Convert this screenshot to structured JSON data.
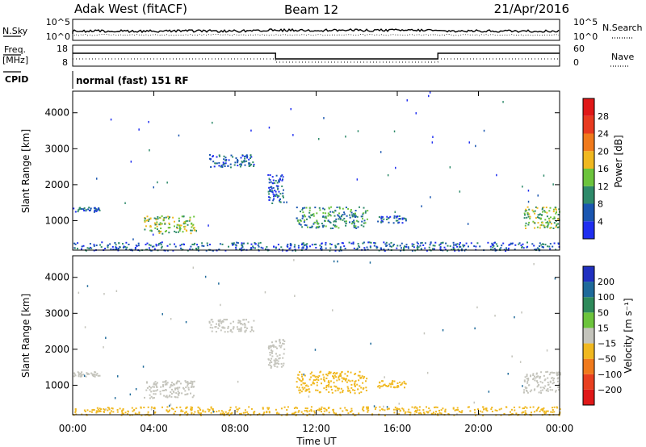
{
  "header": {
    "radar": "Adak West (fitACF)",
    "beam": "Beam 12",
    "date": "21/Apr/2016"
  },
  "status": {
    "nsky_label": "N.Sky",
    "nsearch_label": "N.Search",
    "freq_label_top": "Freq.",
    "freq_label_bottom": "[MHz]",
    "nave_label": "Nave",
    "cpid_label": "CPID",
    "cpid_text": "normal (fast) 151 RF",
    "noise_ticks": [
      "10^5",
      "10^0"
    ],
    "noise_ticks_right": [
      "10^5",
      "10^0"
    ],
    "freq_ticks": [
      "18",
      "8"
    ],
    "nave_ticks": [
      "60",
      "0"
    ]
  },
  "chart_data": [
    {
      "type": "heatmap",
      "name": "power",
      "ylabel": "Slant Range [km]",
      "xlabel": "",
      "ylim": [
        180,
        4600
      ],
      "xlim": [
        0,
        24
      ],
      "yticks": [
        1000,
        2000,
        3000,
        4000
      ],
      "colorbar": {
        "label": "Power [dB]",
        "ticks": [
          "4",
          "8",
          "12",
          "16",
          "20",
          "24",
          "28"
        ],
        "colors": [
          "#1f2ef0",
          "#1a56b0",
          "#2e8a6a",
          "#6cc43c",
          "#f0b820",
          "#f07a1c",
          "#e83a20",
          "#e01818"
        ]
      },
      "blobs": [
        {
          "t0": 0.0,
          "t1": 1.3,
          "r0": 1260,
          "r1": 1400,
          "level": 1
        },
        {
          "t0": 3.5,
          "t1": 6.0,
          "r0": 650,
          "r1": 1150,
          "level": 3
        },
        {
          "t0": 6.7,
          "t1": 8.9,
          "r0": 2500,
          "r1": 2850,
          "level": 1
        },
        {
          "t0": 9.6,
          "t1": 10.4,
          "r0": 1500,
          "r1": 2300,
          "level": 1
        },
        {
          "t0": 11.0,
          "t1": 14.5,
          "r0": 800,
          "r1": 1400,
          "level": 2
        },
        {
          "t0": 15.0,
          "t1": 16.4,
          "r0": 950,
          "r1": 1150,
          "level": 1
        },
        {
          "t0": 22.2,
          "t1": 24.0,
          "r0": 800,
          "r1": 1400,
          "level": 3
        },
        {
          "t0": 0.0,
          "t1": 24.0,
          "r0": 180,
          "r1": 420,
          "level": 1
        }
      ]
    },
    {
      "type": "heatmap",
      "name": "velocity",
      "ylabel": "Slant Range [km]",
      "xlabel": "Time UT",
      "ylim": [
        180,
        4600
      ],
      "xlim": [
        0,
        24
      ],
      "xticks": [
        "00:00",
        "04:00",
        "08:00",
        "12:00",
        "16:00",
        "20:00",
        "00:00"
      ],
      "yticks": [
        1000,
        2000,
        3000,
        4000
      ],
      "colorbar": {
        "label": "Velocity [m s⁻¹]",
        "ticks": [
          "200",
          "100",
          "50",
          "15",
          "−15",
          "−50",
          "−100",
          "−200"
        ],
        "colors": [
          "#2030c0",
          "#1f6a9a",
          "#2e8a5a",
          "#6cc43c",
          "#c4c4bc",
          "#f0b820",
          "#f07a1c",
          "#e84020",
          "#e01818"
        ]
      },
      "blobs": [
        {
          "t0": 0.0,
          "t1": 1.3,
          "r0": 1260,
          "r1": 1400,
          "color": "#c4c4bc"
        },
        {
          "t0": 3.5,
          "t1": 6.0,
          "r0": 650,
          "r1": 1150,
          "color": "#c4c4bc"
        },
        {
          "t0": 6.7,
          "t1": 8.9,
          "r0": 2500,
          "r1": 2850,
          "color": "#c4c4bc"
        },
        {
          "t0": 9.6,
          "t1": 10.4,
          "r0": 1500,
          "r1": 2300,
          "color": "#c4c4bc"
        },
        {
          "t0": 11.0,
          "t1": 14.5,
          "r0": 800,
          "r1": 1400,
          "color": "#f0b820"
        },
        {
          "t0": 15.0,
          "t1": 16.4,
          "r0": 950,
          "r1": 1150,
          "color": "#f0b820"
        },
        {
          "t0": 22.2,
          "t1": 24.0,
          "r0": 800,
          "r1": 1400,
          "color": "#c4c4bc"
        },
        {
          "t0": 0.0,
          "t1": 24.0,
          "r0": 180,
          "r1": 420,
          "color": "#f0b820"
        }
      ]
    }
  ]
}
